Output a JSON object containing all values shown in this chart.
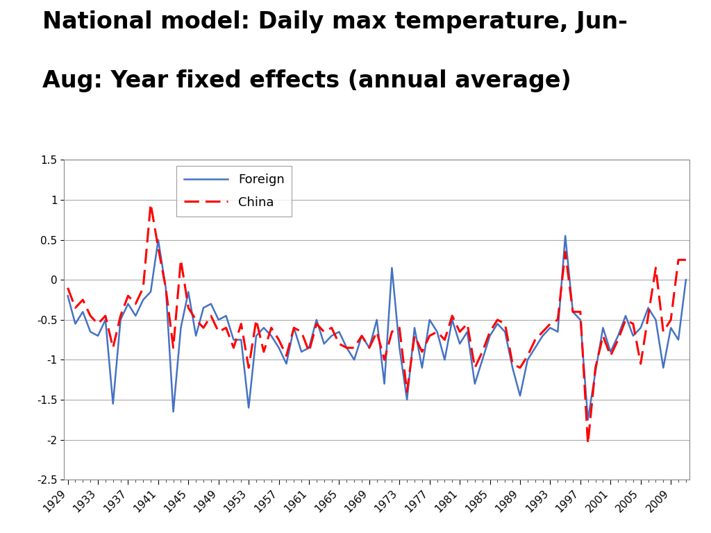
{
  "title_line1": "National model: Daily max temperature, Jun-",
  "title_line2": "Aug: Year fixed effects (annual average)",
  "foreign": {
    "years": [
      1929,
      1930,
      1931,
      1932,
      1933,
      1934,
      1935,
      1936,
      1937,
      1938,
      1939,
      1940,
      1941,
      1942,
      1943,
      1944,
      1945,
      1946,
      1947,
      1948,
      1949,
      1950,
      1951,
      1952,
      1953,
      1954,
      1955,
      1956,
      1957,
      1958,
      1959,
      1960,
      1961,
      1962,
      1963,
      1964,
      1965,
      1966,
      1967,
      1968,
      1969,
      1970,
      1971,
      1972,
      1973,
      1974,
      1975,
      1976,
      1977,
      1978,
      1979,
      1980,
      1981,
      1982,
      1983,
      1984,
      1985,
      1986,
      1987,
      1988,
      1989,
      1990,
      1991,
      1992,
      1993,
      1994,
      1995,
      1996,
      1997,
      1998,
      1999,
      2000,
      2001,
      2002,
      2003,
      2004,
      2005,
      2006,
      2007,
      2008,
      2009,
      2010,
      2011
    ],
    "values": [
      -0.2,
      -0.55,
      -0.4,
      -0.65,
      -0.7,
      -0.5,
      -1.55,
      -0.5,
      -0.3,
      -0.45,
      -0.25,
      -0.15,
      0.5,
      -0.1,
      -1.65,
      -0.6,
      -0.15,
      -0.7,
      -0.35,
      -0.3,
      -0.5,
      -0.45,
      -0.75,
      -0.75,
      -1.6,
      -0.7,
      -0.6,
      -0.7,
      -0.85,
      -1.05,
      -0.6,
      -0.9,
      -0.85,
      -0.5,
      -0.8,
      -0.7,
      -0.65,
      -0.85,
      -1.0,
      -0.7,
      -0.85,
      -0.5,
      -1.3,
      0.15,
      -0.85,
      -1.5,
      -0.6,
      -1.1,
      -0.5,
      -0.65,
      -1.0,
      -0.5,
      -0.8,
      -0.65,
      -1.3,
      -1.0,
      -0.7,
      -0.55,
      -0.65,
      -1.1,
      -1.45,
      -1.0,
      -0.85,
      -0.7,
      -0.6,
      -0.65,
      0.55,
      -0.4,
      -0.5,
      -1.75,
      -1.15,
      -0.6,
      -0.9,
      -0.7,
      -0.45,
      -0.7,
      -0.6,
      -0.35,
      -0.5,
      -1.1,
      -0.6,
      -0.75,
      0.0
    ]
  },
  "china": {
    "years": [
      1929,
      1930,
      1931,
      1932,
      1933,
      1934,
      1935,
      1936,
      1937,
      1938,
      1939,
      1940,
      1941,
      1942,
      1943,
      1944,
      1945,
      1946,
      1947,
      1948,
      1949,
      1950,
      1951,
      1952,
      1953,
      1954,
      1955,
      1956,
      1957,
      1958,
      1959,
      1960,
      1961,
      1962,
      1963,
      1964,
      1965,
      1966,
      1967,
      1968,
      1969,
      1970,
      1971,
      1972,
      1973,
      1974,
      1975,
      1976,
      1977,
      1978,
      1979,
      1980,
      1981,
      1982,
      1983,
      1984,
      1985,
      1986,
      1987,
      1988,
      1989,
      1990,
      1991,
      1992,
      1993,
      1994,
      1995,
      1996,
      1997,
      1998,
      1999,
      2000,
      2001,
      2002,
      2003,
      2004,
      2005,
      2006,
      2007,
      2008,
      2009,
      2010,
      2011
    ],
    "values": [
      -0.1,
      -0.35,
      -0.25,
      -0.45,
      -0.55,
      -0.45,
      -0.85,
      -0.45,
      -0.2,
      -0.3,
      -0.1,
      0.95,
      0.4,
      -0.1,
      -0.85,
      0.25,
      -0.35,
      -0.5,
      -0.6,
      -0.45,
      -0.65,
      -0.6,
      -0.85,
      -0.55,
      -1.1,
      -0.5,
      -0.9,
      -0.6,
      -0.75,
      -0.95,
      -0.6,
      -0.65,
      -0.9,
      -0.55,
      -0.65,
      -0.6,
      -0.8,
      -0.85,
      -0.85,
      -0.7,
      -0.85,
      -0.65,
      -1.0,
      -0.65,
      -0.6,
      -1.4,
      -0.7,
      -0.9,
      -0.7,
      -0.65,
      -0.75,
      -0.45,
      -0.65,
      -0.55,
      -1.1,
      -0.9,
      -0.65,
      -0.5,
      -0.55,
      -1.05,
      -1.1,
      -0.95,
      -0.75,
      -0.65,
      -0.55,
      -0.5,
      0.35,
      -0.4,
      -0.4,
      -2.05,
      -1.1,
      -0.7,
      -0.95,
      -0.75,
      -0.5,
      -0.55,
      -1.05,
      -0.45,
      0.15,
      -0.65,
      -0.5,
      0.25,
      0.25
    ]
  },
  "xtick_years": [
    1929,
    1933,
    1937,
    1941,
    1945,
    1949,
    1953,
    1957,
    1961,
    1965,
    1969,
    1973,
    1977,
    1981,
    1985,
    1989,
    1993,
    1997,
    2001,
    2005,
    2009
  ],
  "ylim": [
    -2.5,
    1.5
  ],
  "yticks": [
    -2.5,
    -2.0,
    -1.5,
    -1.0,
    -0.5,
    0.0,
    0.5,
    1.0,
    1.5
  ],
  "foreign_color": "#4472C4",
  "china_color": "#FF0000",
  "background_color": "#FFFFFF",
  "plot_bg_color": "#FFFFFF",
  "grid_color": "#AAAAAA",
  "title_fontsize": 24,
  "tick_fontsize": 11,
  "legend_fontsize": 13
}
